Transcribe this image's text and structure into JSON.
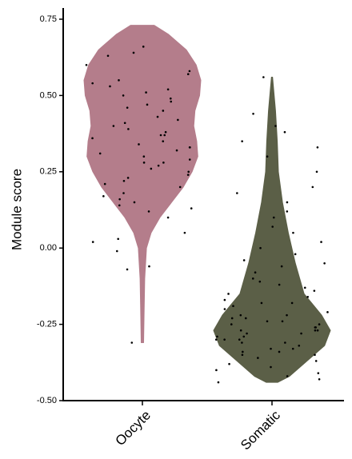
{
  "chart_data": {
    "type": "violin",
    "y_label": "Module score",
    "categories": [
      "Oocyte",
      "Somatic"
    ],
    "ylim": [
      -0.5,
      0.75
    ],
    "yticks": [
      {
        "value": -0.5,
        "label": "-0.50"
      },
      -0.25,
      {
        "value": 0,
        "label": "0.00"
      },
      0.25,
      {
        "value": 0.5,
        "label": "0.50"
      },
      0.75
    ],
    "violins": [
      {
        "color": "#b47d8b",
        "levels": [
          0.73,
          0.7,
          0.65,
          0.6,
          0.55,
          0.5,
          0.45,
          0.4,
          0.35,
          0.3,
          0.25,
          0.2,
          0.15,
          0.1,
          0.05,
          0.0,
          -0.1,
          -0.2,
          -0.31
        ],
        "widths": [
          0.2,
          0.45,
          0.75,
          0.92,
          1.0,
          0.98,
          0.9,
          0.88,
          0.93,
          0.95,
          0.85,
          0.7,
          0.5,
          0.3,
          0.15,
          0.07,
          0.04,
          0.03,
          0.02
        ],
        "points": [
          0.6,
          0.58,
          0.55,
          0.53,
          0.52,
          0.51,
          0.5,
          0.49,
          0.48,
          0.47,
          0.45,
          0.43,
          0.42,
          0.4,
          0.39,
          0.38,
          0.37,
          0.36,
          0.35,
          0.34,
          0.33,
          0.32,
          0.31,
          0.3,
          0.29,
          0.28,
          0.27,
          0.26,
          0.25,
          0.24,
          0.23,
          0.22,
          0.2,
          0.18,
          0.17,
          0.16,
          0.15,
          0.14,
          0.13,
          0.12,
          0.1,
          0.05,
          0.02,
          -0.01,
          -0.06,
          0.66,
          0.64,
          0.63,
          0.57,
          0.54,
          0.46,
          0.41,
          0.37,
          0.33,
          0.28,
          0.21,
          -0.31,
          0.03,
          -0.07
        ]
      },
      {
        "color": "#5b5f47",
        "levels": [
          0.56,
          0.45,
          0.35,
          0.25,
          0.15,
          0.05,
          -0.05,
          -0.15,
          -0.22,
          -0.27,
          -0.32,
          -0.37,
          -0.42,
          -0.44
        ],
        "widths": [
          0.01,
          0.06,
          0.09,
          0.11,
          0.18,
          0.28,
          0.4,
          0.55,
          0.85,
          1.0,
          0.9,
          0.6,
          0.3,
          0.1
        ],
        "points": [
          0.56,
          0.44,
          0.4,
          0.38,
          0.35,
          0.33,
          0.3,
          0.2,
          0.15,
          0.12,
          0.1,
          0.07,
          0.05,
          0.02,
          0.0,
          -0.02,
          -0.04,
          -0.06,
          -0.08,
          -0.1,
          -0.11,
          -0.13,
          -0.14,
          -0.15,
          -0.16,
          -0.17,
          -0.18,
          -0.19,
          -0.2,
          -0.21,
          -0.22,
          -0.22,
          -0.23,
          -0.24,
          -0.24,
          -0.25,
          -0.25,
          -0.26,
          -0.26,
          -0.27,
          -0.27,
          -0.28,
          -0.28,
          -0.29,
          -0.29,
          -0.3,
          -0.3,
          -0.31,
          -0.31,
          -0.32,
          -0.33,
          -0.33,
          -0.34,
          -0.35,
          -0.35,
          -0.36,
          -0.37,
          -0.38,
          -0.39,
          -0.4,
          -0.41,
          -0.42,
          -0.43,
          -0.44,
          0.25,
          0.18,
          -0.05,
          -0.12,
          -0.18,
          -0.23,
          -0.27,
          -0.3,
          -0.34
        ]
      }
    ]
  }
}
